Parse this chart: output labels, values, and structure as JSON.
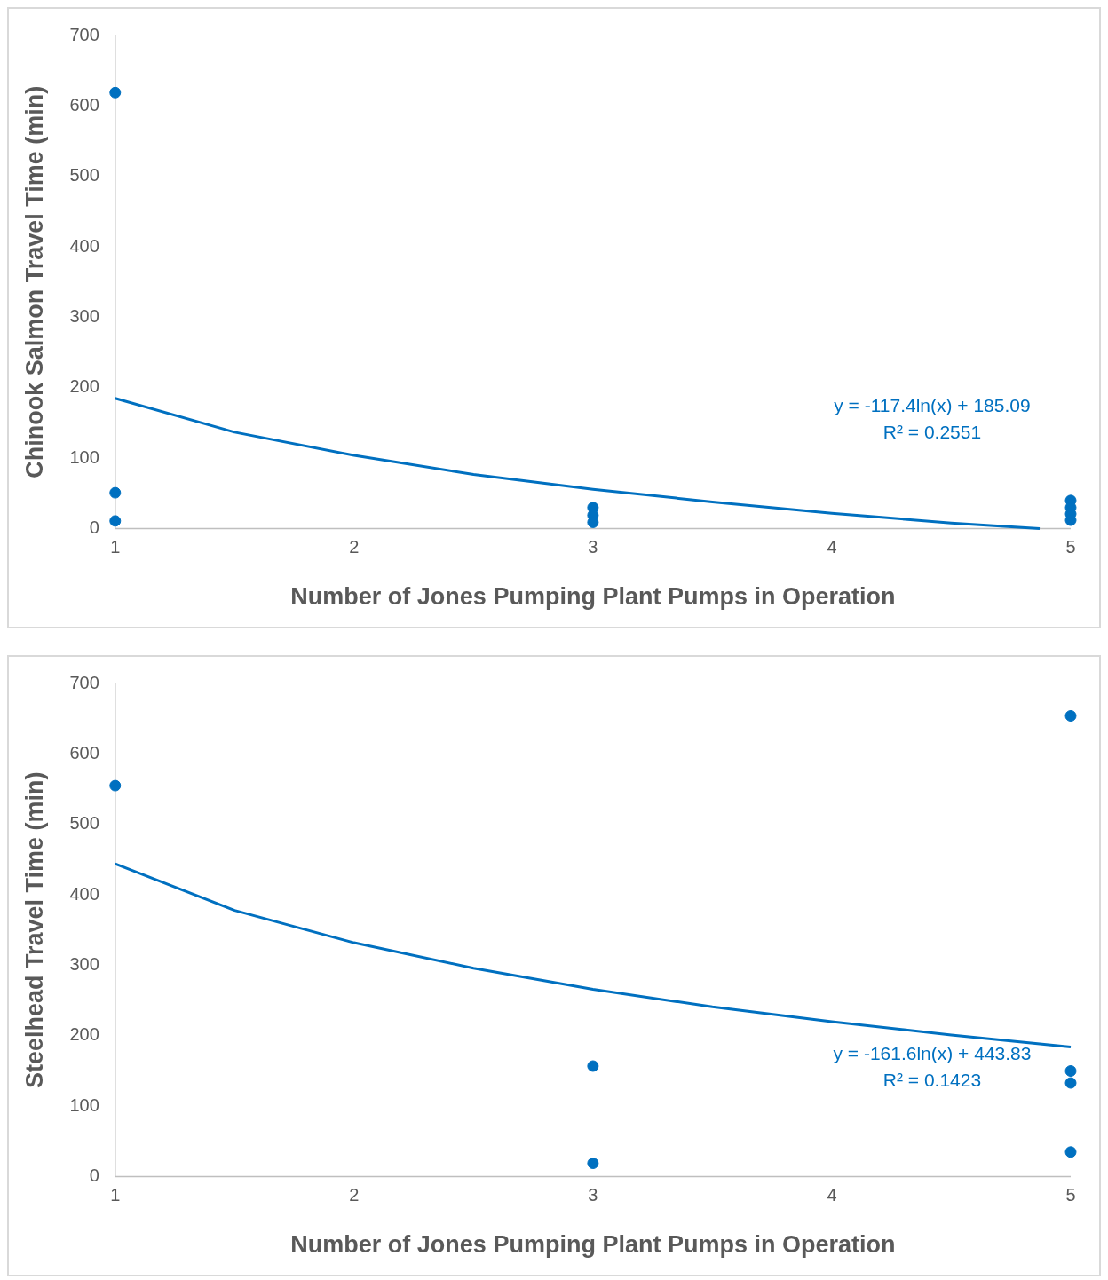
{
  "chart_data": [
    {
      "type": "scatter",
      "xlabel": "Number of Jones Pumping Plant Pumps in Operation",
      "ylabel": "Chinook Salmon Travel Time (min)",
      "xlim": [
        1,
        5
      ],
      "ylim": [
        0,
        700
      ],
      "xticks": [
        1,
        2,
        3,
        4,
        5
      ],
      "yticks": [
        0,
        100,
        200,
        300,
        400,
        500,
        600,
        700
      ],
      "grid": false,
      "legend": false,
      "marker": "circle",
      "annotations": [
        "y = -117.4ln(x) + 185.09",
        "R² = 0.2551"
      ],
      "series": [
        {
          "color": "#0070c0",
          "x": [
            1,
            1,
            1,
            3,
            3,
            3,
            5,
            5,
            5,
            5
          ],
          "values": [
            619,
            51,
            11,
            30,
            19,
            9,
            40,
            30,
            21,
            12
          ]
        },
        {
          "type": "line",
          "color": "#0070c0",
          "marker": "none",
          "x": [
            1,
            1.5,
            2,
            2.5,
            3,
            3.5,
            4,
            4.5,
            4.87
          ],
          "values": [
            185,
            137,
            104,
            77,
            56,
            38,
            22,
            8,
            0
          ]
        }
      ]
    },
    {
      "type": "scatter",
      "xlabel": "Number of Jones Pumping Plant Pumps in Operation",
      "ylabel": "Steelhead Travel Time (min)",
      "xlim": [
        1,
        5
      ],
      "ylim": [
        0,
        700
      ],
      "xticks": [
        1,
        2,
        3,
        4,
        5
      ],
      "yticks": [
        0,
        100,
        200,
        300,
        400,
        500,
        600,
        700
      ],
      "grid": false,
      "legend": false,
      "marker": "circle",
      "annotations": [
        "y = -161.6ln(x) + 443.83",
        "R² = 0.1423"
      ],
      "series": [
        {
          "color": "#0070c0",
          "x": [
            1,
            3,
            3,
            5,
            5,
            5,
            5
          ],
          "values": [
            555,
            157,
            19,
            654,
            150,
            133,
            35
          ]
        },
        {
          "type": "line",
          "color": "#0070c0",
          "marker": "none",
          "x": [
            1,
            1.5,
            2,
            2.5,
            3,
            3.5,
            4,
            4.5,
            5
          ],
          "values": [
            444,
            378,
            332,
            296,
            266,
            241,
            220,
            201,
            184
          ]
        }
      ]
    }
  ]
}
